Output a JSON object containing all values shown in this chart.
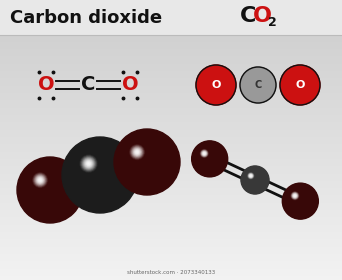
{
  "title_left": "Carbon dioxide",
  "formula_C": "C",
  "formula_O": "O",
  "formula_2": "2",
  "red_color": "#cc1111",
  "dark_gray_sphere": "#404040",
  "mid_gray_sphere": "#888888",
  "light_gray_sphere": "#aaaaaa",
  "bond_color": "#111111",
  "bg_light": "#f2f2f2",
  "bg_dark": "#c8c8c8",
  "header_bg": "#e0e0e0",
  "divider_color": "#bbbbbb",
  "watermark": "shutterstock.com · 2073340133",
  "lewis_O_color": "#cc1111",
  "lewis_C_color": "#111111",
  "lewis_dot_color": "#111111"
}
